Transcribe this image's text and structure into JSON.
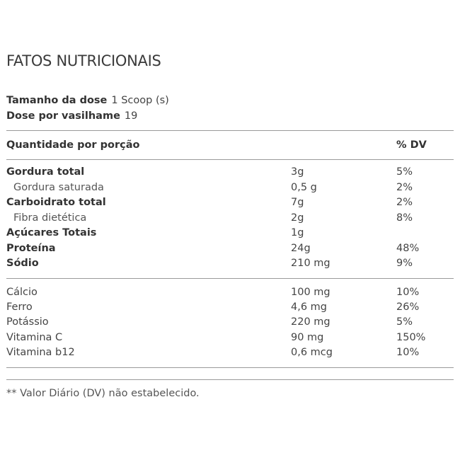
{
  "title": "FATOS NUTRICIONAIS",
  "serving": {
    "size_label": "Tamanho da dose",
    "size_value": "1 Scoop (s)",
    "per_container_label": "Dose por vasilhame",
    "per_container_value": "19"
  },
  "header": {
    "amount_label": "Quantidade por porção",
    "dv_label": "% DV"
  },
  "macros": [
    {
      "name": "Gordura total",
      "amount": "3g",
      "dv": "5%"
    },
    {
      "name": "Gordura saturada",
      "amount": "0,5 g",
      "dv": "2%"
    },
    {
      "name": "Carboidrato total",
      "amount": "7g",
      "dv": "2%"
    },
    {
      "name": "Fibra dietética",
      "amount": "2g",
      "dv": "8%"
    },
    {
      "name": "Açúcares Totais",
      "amount": "1g",
      "dv": ""
    },
    {
      "name": "Proteína",
      "amount": "24g",
      "dv": "48%"
    },
    {
      "name": "Sódio",
      "amount": "210 mg",
      "dv": "9%"
    }
  ],
  "micros": [
    {
      "name": "Cálcio",
      "amount": "100 mg",
      "dv": "10%"
    },
    {
      "name": "Ferro",
      "amount": "4,6 mg",
      "dv": "26%"
    },
    {
      "name": "Potássio",
      "amount": "220 mg",
      "dv": "5%"
    },
    {
      "name": "Vitamina C",
      "amount": "90 mg",
      "dv": "150%"
    },
    {
      "name": "Vitamina b12",
      "amount": "0,6 mcg",
      "dv": "10%"
    }
  ],
  "footnote": "** Valor Diário (DV) não estabelecido."
}
